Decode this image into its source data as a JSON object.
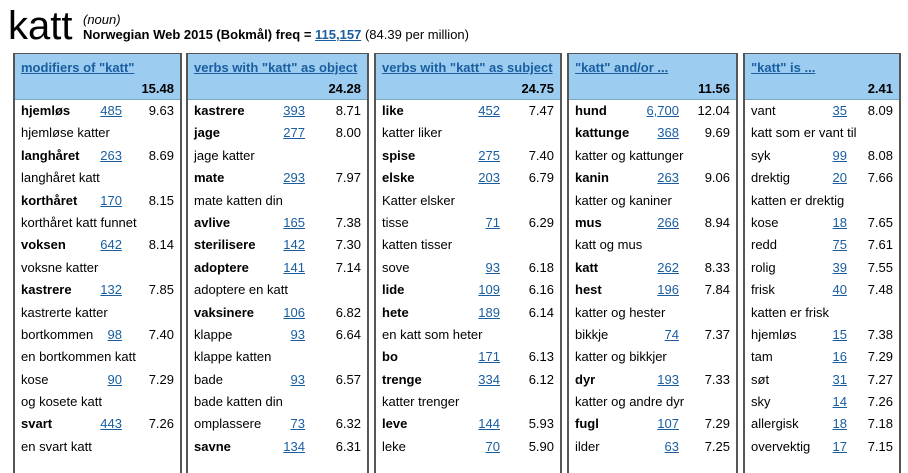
{
  "header": {
    "headword": "katt",
    "pos": "(noun)",
    "corpus": "Norwegian Web 2015 (Bokmål) freq = ",
    "freq": "115,157",
    "per_million": "(84.39 per million)"
  },
  "columns": [
    {
      "title": "modifiers of \"katt\"",
      "score": "15.48",
      "rows": [
        {
          "w": "hjemløs",
          "b": true,
          "f": "485",
          "s": "9.63"
        },
        {
          "e": "hjemløse katter"
        },
        {
          "w": "langhåret",
          "b": true,
          "f": "263",
          "s": "8.69"
        },
        {
          "e": "langhåret katt"
        },
        {
          "w": "korthåret",
          "b": true,
          "f": "170",
          "s": "8.15"
        },
        {
          "e": "korthåret katt funnet"
        },
        {
          "w": "voksen",
          "b": true,
          "f": "642",
          "s": "8.14"
        },
        {
          "e": "voksne katter"
        },
        {
          "w": "kastrere",
          "b": true,
          "f": "132",
          "s": "7.85"
        },
        {
          "e": "kastrerte katter"
        },
        {
          "w": "bortkommen",
          "b": false,
          "f": "98",
          "s": "7.40"
        },
        {
          "e": "en bortkommen katt"
        },
        {
          "w": "kose",
          "b": false,
          "f": "90",
          "s": "7.29"
        },
        {
          "e": "og kosete katt"
        },
        {
          "w": "svart",
          "b": true,
          "f": "443",
          "s": "7.26"
        },
        {
          "e": "en svart katt"
        }
      ]
    },
    {
      "title": "verbs with \"katt\" as object",
      "score": "24.28",
      "rows": [
        {
          "w": "kastrere",
          "b": true,
          "f": "393",
          "s": "8.71"
        },
        {
          "w": "jage",
          "b": true,
          "f": "277",
          "s": "8.00"
        },
        {
          "e": "jage katter"
        },
        {
          "w": "mate",
          "b": true,
          "f": "293",
          "s": "7.97"
        },
        {
          "e": "mate katten din"
        },
        {
          "w": "avlive",
          "b": true,
          "f": "165",
          "s": "7.38"
        },
        {
          "w": "sterilisere",
          "b": true,
          "f": "142",
          "s": "7.30"
        },
        {
          "w": "adoptere",
          "b": true,
          "f": "141",
          "s": "7.14"
        },
        {
          "e": "adoptere en katt"
        },
        {
          "w": "vaksinere",
          "b": true,
          "f": "106",
          "s": "6.82"
        },
        {
          "w": "klappe",
          "b": false,
          "f": "93",
          "s": "6.64"
        },
        {
          "e": "klappe katten"
        },
        {
          "w": "bade",
          "b": false,
          "f": "93",
          "s": "6.57"
        },
        {
          "e": "bade katten din"
        },
        {
          "w": "omplassere",
          "b": false,
          "f": "73",
          "s": "6.32"
        },
        {
          "w": "savne",
          "b": true,
          "f": "134",
          "s": "6.31"
        }
      ]
    },
    {
      "title": "verbs with \"katt\" as subject",
      "score": "24.75",
      "rows": [
        {
          "w": "like",
          "b": true,
          "f": "452",
          "s": "7.47"
        },
        {
          "e": "katter liker"
        },
        {
          "w": "spise",
          "b": true,
          "f": "275",
          "s": "7.40"
        },
        {
          "w": "elske",
          "b": true,
          "f": "203",
          "s": "6.79"
        },
        {
          "e": "Katter elsker"
        },
        {
          "w": "tisse",
          "b": false,
          "f": "71",
          "s": "6.29"
        },
        {
          "e": "katten tisser"
        },
        {
          "w": "sove",
          "b": false,
          "f": "93",
          "s": "6.18"
        },
        {
          "w": "lide",
          "b": true,
          "f": "109",
          "s": "6.16"
        },
        {
          "w": "hete",
          "b": true,
          "f": "189",
          "s": "6.14"
        },
        {
          "e": "en katt som heter"
        },
        {
          "w": "bo",
          "b": true,
          "f": "171",
          "s": "6.13"
        },
        {
          "w": "trenge",
          "b": true,
          "f": "334",
          "s": "6.12"
        },
        {
          "e": "katter trenger"
        },
        {
          "w": "leve",
          "b": true,
          "f": "144",
          "s": "5.93"
        },
        {
          "w": "leke",
          "b": false,
          "f": "70",
          "s": "5.90"
        }
      ]
    },
    {
      "title": "\"katt\" and/or ...",
      "score": "11.56",
      "rows": [
        {
          "w": "hund",
          "b": true,
          "f": "6,700",
          "s": "12.04"
        },
        {
          "w": "kattunge",
          "b": true,
          "f": "368",
          "s": "9.69"
        },
        {
          "e": "katter og kattunger"
        },
        {
          "w": "kanin",
          "b": true,
          "f": "263",
          "s": "9.06"
        },
        {
          "e": "katter og kaniner"
        },
        {
          "w": "mus",
          "b": true,
          "f": "266",
          "s": "8.94"
        },
        {
          "e": "katt og mus"
        },
        {
          "w": "katt",
          "b": true,
          "f": "262",
          "s": "8.33"
        },
        {
          "w": "hest",
          "b": true,
          "f": "196",
          "s": "7.84"
        },
        {
          "e": "katter og hester"
        },
        {
          "w": "bikkje",
          "b": false,
          "f": "74",
          "s": "7.37"
        },
        {
          "e": "katter og bikkjer"
        },
        {
          "w": "dyr",
          "b": true,
          "f": "193",
          "s": "7.33"
        },
        {
          "e": "katter og andre dyr"
        },
        {
          "w": "fugl",
          "b": true,
          "f": "107",
          "s": "7.29"
        },
        {
          "w": "ilder",
          "b": false,
          "f": "63",
          "s": "7.25"
        }
      ]
    },
    {
      "title": "\"katt\" is ...",
      "score": "2.41",
      "rows": [
        {
          "w": "vant",
          "b": false,
          "f": "35",
          "s": "8.09"
        },
        {
          "e": "katt som er vant til"
        },
        {
          "w": "syk",
          "b": false,
          "f": "99",
          "s": "8.08"
        },
        {
          "w": "drektig",
          "b": false,
          "f": "20",
          "s": "7.66"
        },
        {
          "e": "katten er drektig"
        },
        {
          "w": "kose",
          "b": false,
          "f": "18",
          "s": "7.65"
        },
        {
          "w": "redd",
          "b": false,
          "f": "75",
          "s": "7.61"
        },
        {
          "w": "rolig",
          "b": false,
          "f": "39",
          "s": "7.55"
        },
        {
          "w": "frisk",
          "b": false,
          "f": "40",
          "s": "7.48"
        },
        {
          "e": "katten er frisk"
        },
        {
          "w": "hjemløs",
          "b": false,
          "f": "15",
          "s": "7.38"
        },
        {
          "w": "tam",
          "b": false,
          "f": "16",
          "s": "7.29"
        },
        {
          "w": "søt",
          "b": false,
          "f": "31",
          "s": "7.27"
        },
        {
          "w": "sky",
          "b": false,
          "f": "14",
          "s": "7.26"
        },
        {
          "w": "allergisk",
          "b": false,
          "f": "18",
          "s": "7.18"
        },
        {
          "w": "overvektig",
          "b": false,
          "f": "17",
          "s": "7.15"
        }
      ]
    }
  ]
}
